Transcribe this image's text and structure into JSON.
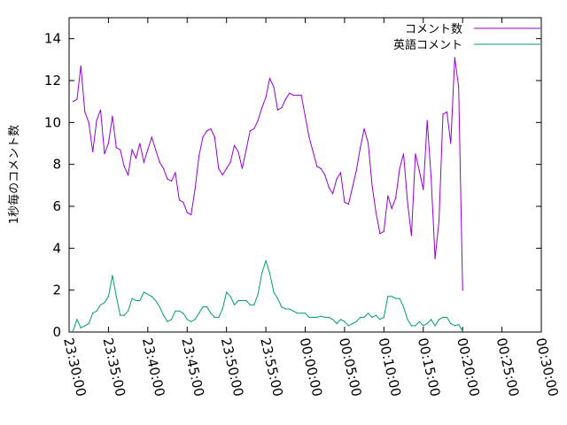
{
  "chart_data": {
    "type": "line",
    "title": "",
    "xlabel": "",
    "ylabel": "1秒毎のコメント数",
    "xlim": [
      "23:30:00",
      "00:30:00"
    ],
    "ylim": [
      0,
      15
    ],
    "x_ticks": [
      "23:30:00",
      "23:35:00",
      "23:40:00",
      "23:45:00",
      "23:50:00",
      "23:55:00",
      "00:00:00",
      "00:05:00",
      "00:10:00",
      "00:15:00",
      "00:20:00",
      "00:25:00",
      "00:30:00"
    ],
    "y_ticks": [
      "0",
      "2",
      "4",
      "6",
      "8",
      "10",
      "12",
      "14"
    ],
    "grid": false,
    "legend_position": "top-right",
    "series": [
      {
        "name": "コメント数",
        "color": "#9400d3",
        "points": [
          [
            "23:30:30",
            11.0
          ],
          [
            "23:31:00",
            11.1
          ],
          [
            "23:31:30",
            12.7
          ],
          [
            "23:32:00",
            10.5
          ],
          [
            "23:32:30",
            10.0
          ],
          [
            "23:33:00",
            8.6
          ],
          [
            "23:33:30",
            10.1
          ],
          [
            "23:34:00",
            10.6
          ],
          [
            "23:34:30",
            8.5
          ],
          [
            "23:35:00",
            9.0
          ],
          [
            "23:35:30",
            10.3
          ],
          [
            "23:36:00",
            8.8
          ],
          [
            "23:36:30",
            8.7
          ],
          [
            "23:37:00",
            7.9
          ],
          [
            "23:37:30",
            7.5
          ],
          [
            "23:38:00",
            8.7
          ],
          [
            "23:38:30",
            8.3
          ],
          [
            "23:39:00",
            9.0
          ],
          [
            "23:39:30",
            8.1
          ],
          [
            "23:40:00",
            8.7
          ],
          [
            "23:40:30",
            9.3
          ],
          [
            "23:41:00",
            8.7
          ],
          [
            "23:41:30",
            8.1
          ],
          [
            "23:42:00",
            7.8
          ],
          [
            "23:42:30",
            7.3
          ],
          [
            "23:43:00",
            7.2
          ],
          [
            "23:43:30",
            7.6
          ],
          [
            "23:44:00",
            6.3
          ],
          [
            "23:44:30",
            6.2
          ],
          [
            "23:45:00",
            5.7
          ],
          [
            "23:45:30",
            5.6
          ],
          [
            "23:46:00",
            6.8
          ],
          [
            "23:46:30",
            8.4
          ],
          [
            "23:47:00",
            9.3
          ],
          [
            "23:47:30",
            9.6
          ],
          [
            "23:48:00",
            9.7
          ],
          [
            "23:48:30",
            9.3
          ],
          [
            "23:49:00",
            7.8
          ],
          [
            "23:49:30",
            7.5
          ],
          [
            "23:50:00",
            7.8
          ],
          [
            "23:50:30",
            8.1
          ],
          [
            "23:51:00",
            8.9
          ],
          [
            "23:51:30",
            8.6
          ],
          [
            "23:52:00",
            7.8
          ],
          [
            "23:52:30",
            8.7
          ],
          [
            "23:53:00",
            9.6
          ],
          [
            "23:53:30",
            9.7
          ],
          [
            "23:54:00",
            10.1
          ],
          [
            "23:54:30",
            10.7
          ],
          [
            "23:55:00",
            11.2
          ],
          [
            "23:55:30",
            12.1
          ],
          [
            "23:56:00",
            11.7
          ],
          [
            "23:56:30",
            10.6
          ],
          [
            "23:57:00",
            10.7
          ],
          [
            "23:57:30",
            11.1
          ],
          [
            "23:58:00",
            11.4
          ],
          [
            "23:58:30",
            11.3
          ],
          [
            "23:59:00",
            11.3
          ],
          [
            "23:59:30",
            11.3
          ],
          [
            "00:00:00",
            10.3
          ],
          [
            "00:00:30",
            9.3
          ],
          [
            "00:01:00",
            8.6
          ],
          [
            "00:01:30",
            7.9
          ],
          [
            "00:02:00",
            7.8
          ],
          [
            "00:02:30",
            7.5
          ],
          [
            "00:03:00",
            6.9
          ],
          [
            "00:03:30",
            6.6
          ],
          [
            "00:04:00",
            7.3
          ],
          [
            "00:04:30",
            7.6
          ],
          [
            "00:05:00",
            6.2
          ],
          [
            "00:05:30",
            6.1
          ],
          [
            "00:06:00",
            6.9
          ],
          [
            "00:06:30",
            7.7
          ],
          [
            "00:07:00",
            8.8
          ],
          [
            "00:07:30",
            9.7
          ],
          [
            "00:08:00",
            9.0
          ],
          [
            "00:08:30",
            7.0
          ],
          [
            "00:09:00",
            5.7
          ],
          [
            "00:09:30",
            4.7
          ],
          [
            "00:10:00",
            4.8
          ],
          [
            "00:10:30",
            6.5
          ],
          [
            "00:11:00",
            5.9
          ],
          [
            "00:11:30",
            6.4
          ],
          [
            "00:12:00",
            7.8
          ],
          [
            "00:12:30",
            8.5
          ],
          [
            "00:13:00",
            6.2
          ],
          [
            "00:13:30",
            4.6
          ],
          [
            "00:14:00",
            8.5
          ],
          [
            "00:14:30",
            7.7
          ],
          [
            "00:15:00",
            6.8
          ],
          [
            "00:15:30",
            10.1
          ],
          [
            "00:16:00",
            7.4
          ],
          [
            "00:16:30",
            3.5
          ],
          [
            "00:17:00",
            5.3
          ],
          [
            "00:17:30",
            10.4
          ],
          [
            "00:18:00",
            10.5
          ],
          [
            "00:18:30",
            9.0
          ],
          [
            "00:19:00",
            13.1
          ],
          [
            "00:19:30",
            11.7
          ],
          [
            "00:20:00",
            2.0
          ]
        ]
      },
      {
        "name": "英語コメント",
        "color": "#009e73",
        "points": [
          [
            "23:30:30",
            0.05
          ],
          [
            "23:31:00",
            0.6
          ],
          [
            "23:31:30",
            0.2
          ],
          [
            "23:32:00",
            0.3
          ],
          [
            "23:32:30",
            0.4
          ],
          [
            "23:33:00",
            0.9
          ],
          [
            "23:33:30",
            1.0
          ],
          [
            "23:34:00",
            1.3
          ],
          [
            "23:34:30",
            1.4
          ],
          [
            "23:35:00",
            1.7
          ],
          [
            "23:35:30",
            2.7
          ],
          [
            "23:36:00",
            1.7
          ],
          [
            "23:36:30",
            0.8
          ],
          [
            "23:37:00",
            0.8
          ],
          [
            "23:37:30",
            1.0
          ],
          [
            "23:38:00",
            1.6
          ],
          [
            "23:38:30",
            1.5
          ],
          [
            "23:39:00",
            1.5
          ],
          [
            "23:39:30",
            1.9
          ],
          [
            "23:40:00",
            1.8
          ],
          [
            "23:40:30",
            1.7
          ],
          [
            "23:41:00",
            1.5
          ],
          [
            "23:41:30",
            1.2
          ],
          [
            "23:42:00",
            0.8
          ],
          [
            "23:42:30",
            0.5
          ],
          [
            "23:43:00",
            0.6
          ],
          [
            "23:43:30",
            1.0
          ],
          [
            "23:44:00",
            1.0
          ],
          [
            "23:44:30",
            0.9
          ],
          [
            "23:45:00",
            0.6
          ],
          [
            "23:45:30",
            0.5
          ],
          [
            "23:46:00",
            0.6
          ],
          [
            "23:46:30",
            0.9
          ],
          [
            "23:47:00",
            1.2
          ],
          [
            "23:47:30",
            1.2
          ],
          [
            "23:48:00",
            0.9
          ],
          [
            "23:48:30",
            0.7
          ],
          [
            "23:49:00",
            0.7
          ],
          [
            "23:49:30",
            1.1
          ],
          [
            "23:50:00",
            1.9
          ],
          [
            "23:50:30",
            1.7
          ],
          [
            "23:51:00",
            1.3
          ],
          [
            "23:51:30",
            1.5
          ],
          [
            "23:52:00",
            1.5
          ],
          [
            "23:52:30",
            1.5
          ],
          [
            "23:53:00",
            1.3
          ],
          [
            "23:53:30",
            1.3
          ],
          [
            "23:54:00",
            1.8
          ],
          [
            "23:54:30",
            2.8
          ],
          [
            "23:55:00",
            3.4
          ],
          [
            "23:55:30",
            2.8
          ],
          [
            "23:56:00",
            1.9
          ],
          [
            "23:56:30",
            1.6
          ],
          [
            "23:57:00",
            1.2
          ],
          [
            "23:57:30",
            1.1
          ],
          [
            "23:58:00",
            1.1
          ],
          [
            "23:58:30",
            1.0
          ],
          [
            "23:59:00",
            0.9
          ],
          [
            "23:59:30",
            0.9
          ],
          [
            "00:00:00",
            0.9
          ],
          [
            "00:00:30",
            0.7
          ],
          [
            "00:01:00",
            0.7
          ],
          [
            "00:01:30",
            0.7
          ],
          [
            "00:02:00",
            0.75
          ],
          [
            "00:02:30",
            0.7
          ],
          [
            "00:03:00",
            0.7
          ],
          [
            "00:03:30",
            0.6
          ],
          [
            "00:04:00",
            0.4
          ],
          [
            "00:04:30",
            0.6
          ],
          [
            "00:05:00",
            0.5
          ],
          [
            "00:05:30",
            0.3
          ],
          [
            "00:06:00",
            0.4
          ],
          [
            "00:06:30",
            0.5
          ],
          [
            "00:07:00",
            0.7
          ],
          [
            "00:07:30",
            0.7
          ],
          [
            "00:08:00",
            0.9
          ],
          [
            "00:08:30",
            0.7
          ],
          [
            "00:09:00",
            0.8
          ],
          [
            "00:09:30",
            0.6
          ],
          [
            "00:10:00",
            0.7
          ],
          [
            "00:10:30",
            1.7
          ],
          [
            "00:11:00",
            1.7
          ],
          [
            "00:11:30",
            1.6
          ],
          [
            "00:12:00",
            1.6
          ],
          [
            "00:12:30",
            1.2
          ],
          [
            "00:13:00",
            0.6
          ],
          [
            "00:13:30",
            0.3
          ],
          [
            "00:14:00",
            0.3
          ],
          [
            "00:14:30",
            0.5
          ],
          [
            "00:15:00",
            0.3
          ],
          [
            "00:15:30",
            0.4
          ],
          [
            "00:16:00",
            0.6
          ],
          [
            "00:16:30",
            0.3
          ],
          [
            "00:17:00",
            0.6
          ],
          [
            "00:17:30",
            0.7
          ],
          [
            "00:18:00",
            0.7
          ],
          [
            "00:18:30",
            0.4
          ],
          [
            "00:19:00",
            0.3
          ],
          [
            "00:19:30",
            0.35
          ],
          [
            "00:20:00",
            0.05
          ]
        ]
      }
    ]
  }
}
